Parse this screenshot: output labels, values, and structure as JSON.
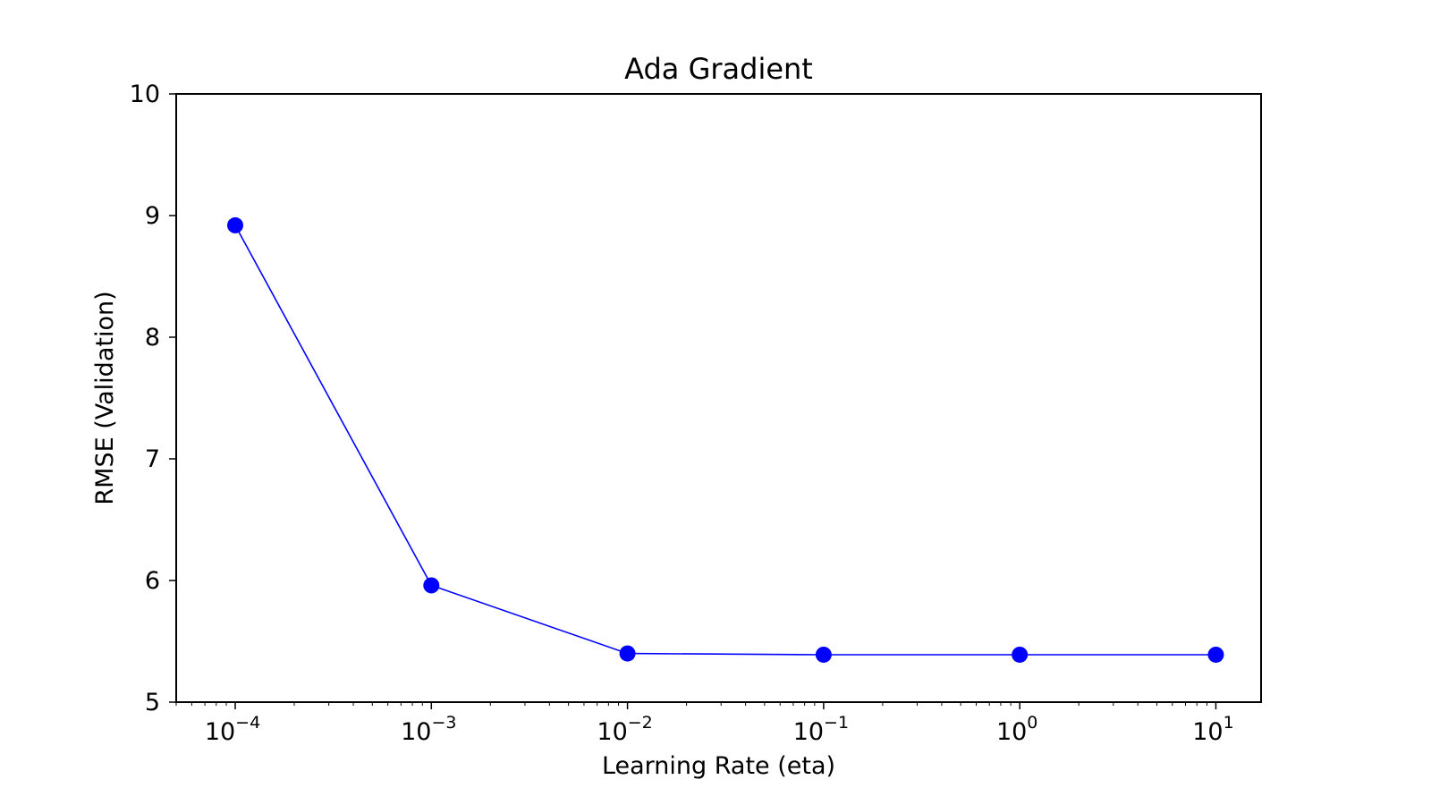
{
  "chart_data": {
    "type": "line",
    "title": "Ada Gradient",
    "xlabel": "Learning Rate (eta)",
    "ylabel": "RMSE (Validation)",
    "x_scale": "log",
    "xlim": [
      5e-05,
      17
    ],
    "ylim": [
      5,
      10
    ],
    "x_ticks": [
      0.0001,
      0.001,
      0.01,
      0.1,
      1,
      10
    ],
    "x_tick_labels": [
      {
        "base": "10",
        "exponent": "−4"
      },
      {
        "base": "10",
        "exponent": "−3"
      },
      {
        "base": "10",
        "exponent": "−2"
      },
      {
        "base": "10",
        "exponent": "−1"
      },
      {
        "base": "10",
        "exponent": "0"
      },
      {
        "base": "10",
        "exponent": "1"
      }
    ],
    "y_ticks": [
      5,
      6,
      7,
      8,
      9,
      10
    ],
    "y_tick_labels": [
      "5",
      "6",
      "7",
      "8",
      "9",
      "10"
    ],
    "grid": false,
    "legend": "none",
    "series": [
      {
        "color": "#0000ff",
        "marker": "circle",
        "x": [
          0.0001,
          0.001,
          0.01,
          0.1,
          1,
          10
        ],
        "y": [
          8.92,
          5.96,
          5.4,
          5.39,
          5.39,
          5.39
        ]
      }
    ]
  }
}
